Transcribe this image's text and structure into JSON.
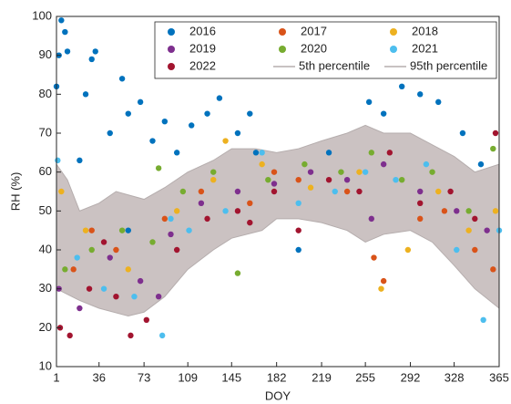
{
  "chart_data": {
    "type": "scatter",
    "xlabel": "DOY",
    "ylabel": "RH (%)",
    "xlim": [
      1,
      365
    ],
    "ylim": [
      10,
      100
    ],
    "xticks": [
      1,
      36,
      73,
      109,
      145,
      182,
      219,
      255,
      292,
      328,
      365
    ],
    "yticks": [
      10,
      20,
      30,
      40,
      50,
      60,
      70,
      80,
      90,
      100
    ],
    "legend": "north-east",
    "band_color": "#cbc2c2",
    "series": [
      {
        "name": "2016",
        "color": "#0072bd",
        "x": [
          1,
          3,
          5,
          8,
          10,
          20,
          25,
          30,
          33,
          45,
          55,
          60,
          70,
          80,
          90,
          100,
          112,
          125,
          135,
          150,
          160,
          165,
          225,
          258,
          270,
          285,
          300,
          315,
          335,
          350,
          200,
          60
        ],
        "values": [
          82,
          90,
          99,
          96,
          91,
          63,
          80,
          89,
          91,
          70,
          84,
          75,
          78,
          68,
          73,
          65,
          72,
          75,
          79,
          70,
          75,
          65,
          65,
          78,
          75,
          82,
          80,
          78,
          70,
          62,
          40,
          45
        ]
      },
      {
        "name": "2017",
        "color": "#d95319",
        "x": [
          15,
          50,
          90,
          120,
          160,
          200,
          240,
          262,
          270,
          300,
          320,
          345,
          360,
          180,
          30
        ],
        "values": [
          35,
          40,
          48,
          55,
          52,
          58,
          55,
          38,
          32,
          48,
          50,
          40,
          35,
          60,
          45
        ]
      },
      {
        "name": "2018",
        "color": "#edb120",
        "x": [
          5,
          25,
          60,
          100,
          130,
          170,
          210,
          250,
          268,
          290,
          315,
          340,
          362,
          140
        ],
        "values": [
          55,
          45,
          35,
          50,
          58,
          62,
          56,
          60,
          30,
          40,
          55,
          45,
          50,
          68
        ]
      },
      {
        "name": "2019",
        "color": "#7e2f8e",
        "x": [
          3,
          20,
          45,
          70,
          95,
          120,
          150,
          180,
          210,
          240,
          270,
          300,
          330,
          355,
          260,
          85
        ],
        "values": [
          30,
          25,
          38,
          32,
          44,
          52,
          55,
          57,
          60,
          58,
          62,
          55,
          50,
          45,
          48,
          28
        ]
      },
      {
        "name": "2020",
        "color": "#77ac30",
        "x": [
          8,
          30,
          55,
          80,
          105,
          130,
          150,
          175,
          205,
          235,
          260,
          285,
          310,
          340,
          360,
          85
        ],
        "values": [
          35,
          40,
          45,
          42,
          55,
          60,
          34,
          58,
          62,
          60,
          65,
          58,
          60,
          50,
          66,
          61
        ]
      },
      {
        "name": "2021",
        "color": "#4dbeee",
        "x": [
          2,
          18,
          40,
          65,
          88,
          110,
          140,
          170,
          200,
          230,
          255,
          280,
          305,
          330,
          352,
          365,
          95
        ],
        "values": [
          63,
          38,
          30,
          28,
          18,
          45,
          50,
          65,
          52,
          55,
          60,
          58,
          62,
          40,
          22,
          45,
          48
        ]
      },
      {
        "name": "2022",
        "color": "#a2142f",
        "x": [
          4,
          12,
          28,
          50,
          62,
          75,
          100,
          125,
          150,
          180,
          200,
          225,
          250,
          275,
          300,
          325,
          345,
          362,
          40,
          160
        ],
        "values": [
          20,
          18,
          30,
          28,
          18,
          22,
          40,
          48,
          50,
          55,
          45,
          58,
          55,
          65,
          52,
          55,
          48,
          70,
          42,
          47
        ]
      },
      {
        "name": "5th percentile",
        "color": "#b5adad",
        "x": [
          1,
          20,
          36,
          60,
          73,
          90,
          109,
          130,
          145,
          170,
          182,
          200,
          219,
          240,
          255,
          270,
          292,
          310,
          328,
          345,
          365
        ],
        "values": [
          30,
          27,
          25,
          23,
          24,
          28,
          35,
          40,
          43,
          45,
          48,
          48,
          47,
          45,
          42,
          44,
          45,
          42,
          36,
          30,
          25
        ]
      },
      {
        "name": "95th percentile",
        "color": "#b5adad",
        "x": [
          1,
          10,
          20,
          36,
          50,
          73,
          90,
          109,
          130,
          145,
          165,
          182,
          200,
          219,
          240,
          255,
          270,
          292,
          310,
          328,
          345,
          365
        ],
        "values": [
          62,
          58,
          50,
          52,
          55,
          53,
          56,
          60,
          63,
          66,
          66,
          65,
          66,
          68,
          70,
          72,
          70,
          70,
          67,
          64,
          60,
          62
        ]
      }
    ]
  }
}
